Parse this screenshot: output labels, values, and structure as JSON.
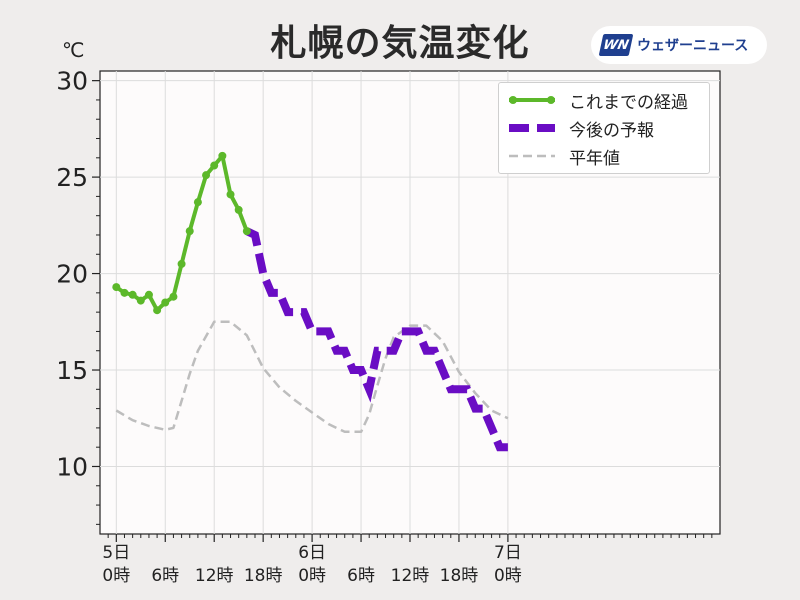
{
  "chart_data": {
    "type": "line",
    "title": "札幌の気温変化",
    "unit_label": "℃",
    "ylim": [
      6.5,
      30.5
    ],
    "yticks": [
      10,
      15,
      20,
      25,
      30
    ],
    "xlim": [
      -2,
      74
    ],
    "xticks": [
      {
        "hour": 0,
        "day": "5日",
        "time": "0時"
      },
      {
        "hour": 6,
        "day": "",
        "time": "6時"
      },
      {
        "hour": 12,
        "day": "",
        "time": "12時"
      },
      {
        "hour": 18,
        "day": "",
        "time": "18時"
      },
      {
        "hour": 24,
        "day": "6日",
        "time": "0時"
      },
      {
        "hour": 30,
        "day": "",
        "time": "6時"
      },
      {
        "hour": 36,
        "day": "",
        "time": "12時"
      },
      {
        "hour": 42,
        "day": "",
        "time": "18時"
      },
      {
        "hour": 48,
        "day": "7日",
        "time": "0時"
      }
    ],
    "grid": true,
    "legend_position": "top-right",
    "series": [
      {
        "name": "これまでの経過",
        "color": "#5cb82a",
        "style": "solid-markers",
        "x": [
          0,
          1,
          2,
          3,
          4,
          5,
          6,
          7,
          8,
          9,
          10,
          11,
          12,
          13,
          14,
          15,
          16
        ],
        "y": [
          19.3,
          19.0,
          18.9,
          18.6,
          18.9,
          18.1,
          18.5,
          18.8,
          20.5,
          22.2,
          23.7,
          25.1,
          25.6,
          26.1,
          24.1,
          23.3,
          22.2
        ]
      },
      {
        "name": "今後の予報",
        "color": "#6a0dc4",
        "style": "dashed-thick",
        "x": [
          16,
          17,
          18,
          19,
          20,
          21,
          22,
          23,
          24,
          25,
          26,
          27,
          28,
          29,
          30,
          31,
          32,
          33,
          34,
          35,
          36,
          37,
          38,
          39,
          40,
          41,
          42,
          43,
          44,
          45,
          46,
          47,
          48
        ],
        "y": [
          22.2,
          22.0,
          20.0,
          19.0,
          19.0,
          18.0,
          18.0,
          18.0,
          17.0,
          17.0,
          17.0,
          16.0,
          16.0,
          15.0,
          15.0,
          14.0,
          16.0,
          16.0,
          16.0,
          17.0,
          17.0,
          17.0,
          16.0,
          16.0,
          15.0,
          14.0,
          14.0,
          14.0,
          13.0,
          13.0,
          12.0,
          11.0,
          11.0
        ]
      },
      {
        "name": "平年値",
        "color": "#bdbdbd",
        "style": "dashed-thin",
        "x": [
          0,
          2,
          4,
          6,
          7,
          8,
          9,
          10,
          12,
          14,
          16,
          18,
          20,
          22,
          24,
          26,
          28,
          30,
          31,
          32,
          33,
          34,
          36,
          38,
          40,
          42,
          44,
          46,
          48
        ],
        "y": [
          12.9,
          12.4,
          12.1,
          11.9,
          12.0,
          13.4,
          14.8,
          16.0,
          17.5,
          17.5,
          16.8,
          15.1,
          14.1,
          13.4,
          12.8,
          12.2,
          11.8,
          11.8,
          12.7,
          14.2,
          15.6,
          16.7,
          17.3,
          17.3,
          16.5,
          14.9,
          13.8,
          12.9,
          12.5
        ]
      }
    ]
  },
  "logo": {
    "mark": "WN",
    "text": "ウェザーニュース"
  }
}
